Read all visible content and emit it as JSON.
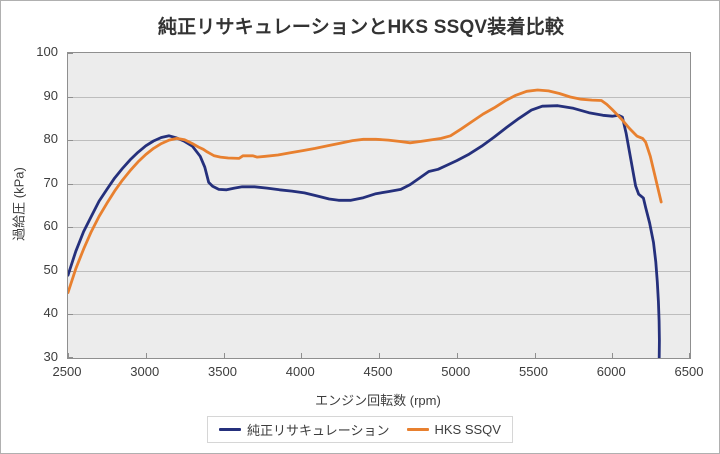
{
  "title": "純正リサキュレーションとHKS SSQV装着比較",
  "chart_data": {
    "type": "line",
    "title": "純正リサキュレーションとHKS SSQV装着比較",
    "xlabel": "エンジン回転数 (rpm)",
    "ylabel": "過給圧 (kPa)",
    "xlim": [
      2500,
      6500
    ],
    "ylim": [
      30,
      100
    ],
    "xticks": [
      2500,
      3000,
      3500,
      4000,
      4500,
      5000,
      5500,
      6000,
      6500
    ],
    "yticks": [
      30,
      40,
      50,
      60,
      70,
      80,
      90,
      100
    ],
    "grid": "horizontal",
    "legend_position": "bottom",
    "plot_bg": "#ececec",
    "grid_color": "#bdbdbd",
    "series": [
      {
        "name": "純正リサキュレーション",
        "color": "#25307c",
        "points": [
          [
            2500,
            49
          ],
          [
            2550,
            54.5
          ],
          [
            2600,
            59
          ],
          [
            2650,
            62.5
          ],
          [
            2700,
            66
          ],
          [
            2750,
            68.7
          ],
          [
            2800,
            71.3
          ],
          [
            2850,
            73.5
          ],
          [
            2900,
            75.5
          ],
          [
            2950,
            77.2
          ],
          [
            3000,
            78.7
          ],
          [
            3050,
            79.8
          ],
          [
            3100,
            80.6
          ],
          [
            3150,
            81
          ],
          [
            3200,
            80.5
          ],
          [
            3250,
            79.7
          ],
          [
            3300,
            78.6
          ],
          [
            3350,
            76.3
          ],
          [
            3380,
            73.8
          ],
          [
            3405,
            70.3
          ],
          [
            3430,
            69.4
          ],
          [
            3470,
            68.7
          ],
          [
            3520,
            68.6
          ],
          [
            3570,
            69
          ],
          [
            3620,
            69.3
          ],
          [
            3700,
            69.3
          ],
          [
            3780,
            69
          ],
          [
            3860,
            68.6
          ],
          [
            3940,
            68.3
          ],
          [
            4020,
            67.9
          ],
          [
            4100,
            67.2
          ],
          [
            4180,
            66.5
          ],
          [
            4240,
            66.2
          ],
          [
            4320,
            66.2
          ],
          [
            4400,
            66.8
          ],
          [
            4480,
            67.7
          ],
          [
            4560,
            68.2
          ],
          [
            4640,
            68.7
          ],
          [
            4700,
            69.8
          ],
          [
            4760,
            71.3
          ],
          [
            4820,
            72.8
          ],
          [
            4880,
            73.3
          ],
          [
            4940,
            74.3
          ],
          [
            5000,
            75.3
          ],
          [
            5080,
            76.8
          ],
          [
            5160,
            78.6
          ],
          [
            5240,
            80.7
          ],
          [
            5320,
            82.9
          ],
          [
            5400,
            85
          ],
          [
            5480,
            86.9
          ],
          [
            5550,
            87.8
          ],
          [
            5650,
            87.9
          ],
          [
            5750,
            87.3
          ],
          [
            5850,
            86.3
          ],
          [
            5940,
            85.7
          ],
          [
            6000,
            85.5
          ],
          [
            6040,
            85.7
          ],
          [
            6065,
            85.3
          ],
          [
            6090,
            81.5
          ],
          [
            6120,
            75.5
          ],
          [
            6150,
            69.5
          ],
          [
            6170,
            67.6
          ],
          [
            6200,
            66.7
          ],
          [
            6215,
            64.5
          ],
          [
            6240,
            61
          ],
          [
            6265,
            56.5
          ],
          [
            6280,
            52
          ],
          [
            6290,
            47.5
          ],
          [
            6297,
            43
          ],
          [
            6301,
            38.5
          ],
          [
            6303,
            34
          ],
          [
            6302,
            30
          ]
        ]
      },
      {
        "name": "HKS SSQV",
        "color": "#e8802f",
        "points": [
          [
            2500,
            45
          ],
          [
            2550,
            50.5
          ],
          [
            2600,
            55
          ],
          [
            2650,
            59
          ],
          [
            2700,
            62.5
          ],
          [
            2750,
            65.5
          ],
          [
            2800,
            68.3
          ],
          [
            2850,
            70.8
          ],
          [
            2900,
            73
          ],
          [
            2950,
            75
          ],
          [
            3000,
            76.7
          ],
          [
            3050,
            78.1
          ],
          [
            3100,
            79.2
          ],
          [
            3150,
            80
          ],
          [
            3200,
            80.4
          ],
          [
            3250,
            80.1
          ],
          [
            3300,
            79.2
          ],
          [
            3340,
            78.4
          ],
          [
            3370,
            77.9
          ],
          [
            3395,
            77.3
          ],
          [
            3410,
            77
          ],
          [
            3440,
            76.4
          ],
          [
            3480,
            76.1
          ],
          [
            3530,
            75.9
          ],
          [
            3600,
            75.8
          ],
          [
            3625,
            76.4
          ],
          [
            3690,
            76.4
          ],
          [
            3715,
            76.1
          ],
          [
            3770,
            76.3
          ],
          [
            3850,
            76.6
          ],
          [
            3930,
            77.1
          ],
          [
            4010,
            77.6
          ],
          [
            4090,
            78.1
          ],
          [
            4170,
            78.7
          ],
          [
            4250,
            79.3
          ],
          [
            4330,
            79.9
          ],
          [
            4400,
            80.2
          ],
          [
            4480,
            80.2
          ],
          [
            4560,
            80
          ],
          [
            4630,
            79.7
          ],
          [
            4700,
            79.4
          ],
          [
            4770,
            79.7
          ],
          [
            4840,
            80.1
          ],
          [
            4900,
            80.4
          ],
          [
            4960,
            81
          ],
          [
            5030,
            82.6
          ],
          [
            5100,
            84.3
          ],
          [
            5170,
            86
          ],
          [
            5240,
            87.4
          ],
          [
            5310,
            89
          ],
          [
            5380,
            90.3
          ],
          [
            5450,
            91.2
          ],
          [
            5520,
            91.5
          ],
          [
            5590,
            91.3
          ],
          [
            5660,
            90.7
          ],
          [
            5730,
            89.9
          ],
          [
            5800,
            89.4
          ],
          [
            5870,
            89.2
          ],
          [
            5930,
            89.1
          ],
          [
            5965,
            88.2
          ],
          [
            6000,
            87
          ],
          [
            6060,
            84.8
          ],
          [
            6110,
            82.7
          ],
          [
            6160,
            80.9
          ],
          [
            6195,
            80.4
          ],
          [
            6215,
            79.5
          ],
          [
            6245,
            76.3
          ],
          [
            6275,
            71.8
          ],
          [
            6300,
            68
          ],
          [
            6315,
            65.8
          ]
        ]
      }
    ]
  }
}
